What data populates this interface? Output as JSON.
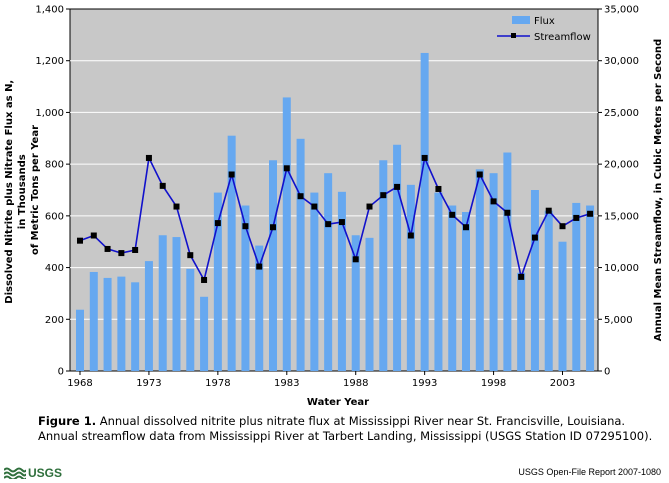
{
  "chart_data": {
    "type": "bar+line",
    "xlabel": "Water Year",
    "ylabel_left": "Dissolved Nitrite plus Nitrate Flux as N, in Thousands of Metric Tons per Year",
    "ylabel_right": "Annual Mean Streamflow, in Cubic Meters per Second",
    "x_ticks": [
      "1968",
      "1973",
      "1978",
      "1983",
      "1988",
      "1993",
      "1998",
      "2003"
    ],
    "ylim_left": [
      0,
      1400
    ],
    "yticks_left": [
      "0",
      "200",
      "400",
      "600",
      "800",
      "1,000",
      "1,200",
      "1,400"
    ],
    "ylim_right": [
      0,
      35000
    ],
    "yticks_right": [
      "0",
      "5,000",
      "10,000",
      "15,000",
      "20,000",
      "25,000",
      "30,000",
      "35,000"
    ],
    "years": [
      1968,
      1969,
      1970,
      1971,
      1972,
      1973,
      1974,
      1975,
      1976,
      1977,
      1978,
      1979,
      1980,
      1981,
      1982,
      1983,
      1984,
      1985,
      1986,
      1987,
      1988,
      1989,
      1990,
      1991,
      1992,
      1993,
      1994,
      1995,
      1996,
      1997,
      1998,
      1999,
      2000,
      2001,
      2002,
      2003,
      2004,
      2005
    ],
    "series": [
      {
        "name": "Flux",
        "type": "bar",
        "axis": "left",
        "color": "#66a8f0",
        "values": [
          237,
          383,
          360,
          365,
          343,
          425,
          525,
          518,
          395,
          287,
          690,
          910,
          640,
          485,
          815,
          1058,
          898,
          690,
          765,
          693,
          525,
          515,
          815,
          875,
          720,
          1230,
          690,
          640,
          615,
          780,
          765,
          845,
          380,
          700,
          620,
          500,
          650,
          640
        ]
      },
      {
        "name": "Streamflow",
        "type": "line",
        "axis": "right",
        "color": "#1111cc",
        "values": [
          12600,
          13100,
          11800,
          11400,
          11700,
          20600,
          17900,
          15900,
          11200,
          8800,
          14300,
          19000,
          14000,
          10100,
          13900,
          19600,
          16900,
          15900,
          14200,
          14400,
          10800,
          15900,
          17000,
          17800,
          13100,
          20600,
          17600,
          15100,
          13900,
          19000,
          16400,
          15300,
          9100,
          12900,
          15500,
          14000,
          14800,
          15200
        ]
      }
    ],
    "legend_placement": "top-right",
    "plot_background": "#c8c8c8",
    "grid": "horizontal"
  },
  "caption": {
    "label": "Figure 1.",
    "text": " Annual dissolved nitrite plus nitrate flux at Mississippi River near St. Francisville, Louisiana. Annual streamflow data from Mississippi River at Tarbert Landing, Mississippi (USGS Station ID 07295100)."
  },
  "footer": {
    "logo_text": "USGS",
    "report": "USGS Open-File Report 2007-1080"
  }
}
